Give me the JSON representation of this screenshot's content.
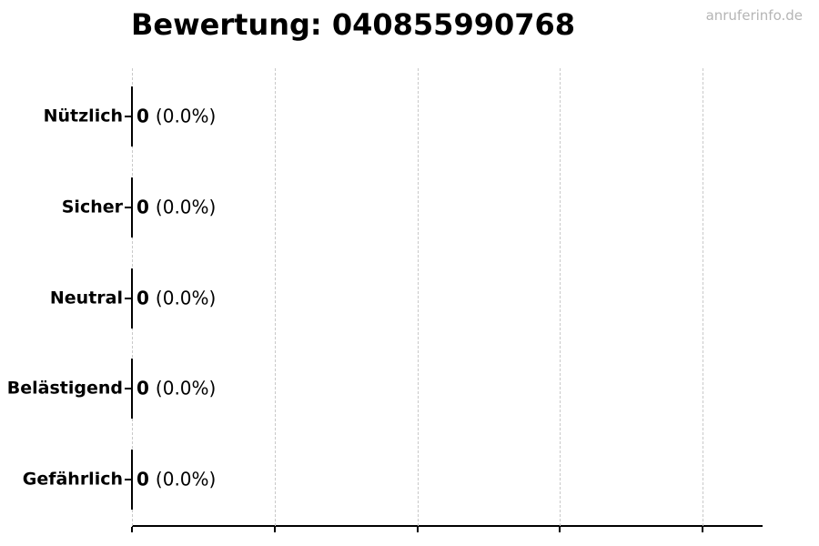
{
  "title": "Bewertung: 040855990768",
  "watermark": "anruferinfo.de",
  "colors": {
    "text": "#000000",
    "axis": "#000000",
    "bar_edge": "#000000",
    "gridline": "#c9c9c9",
    "watermark": "#b5b5b5",
    "background": "#ffffff"
  },
  "chart_data": {
    "type": "bar",
    "orientation": "horizontal",
    "title": "Bewertung: 040855990768",
    "categories": [
      "Nützlich",
      "Sicher",
      "Neutral",
      "Belästigend",
      "Gefährlich"
    ],
    "values": [
      0,
      0,
      0,
      0,
      0
    ],
    "percentages": [
      0.0,
      0.0,
      0.0,
      0.0,
      0.0
    ],
    "rows": [
      {
        "label": "Nützlich",
        "value": "0",
        "percent": "(0.0%)"
      },
      {
        "label": "Sicher",
        "value": "0",
        "percent": "(0.0%)"
      },
      {
        "label": "Neutral",
        "value": "0",
        "percent": "(0.0%)"
      },
      {
        "label": "Belästigend",
        "value": "0",
        "percent": "(0.0%)"
      },
      {
        "label": "Gefährlich",
        "value": "0",
        "percent": "(0.0%)"
      }
    ],
    "xlabel": "",
    "ylabel": "",
    "x_tick_labels": [],
    "grid": "vertical-dashed",
    "x_gridline_count": 5,
    "legend": "none"
  }
}
